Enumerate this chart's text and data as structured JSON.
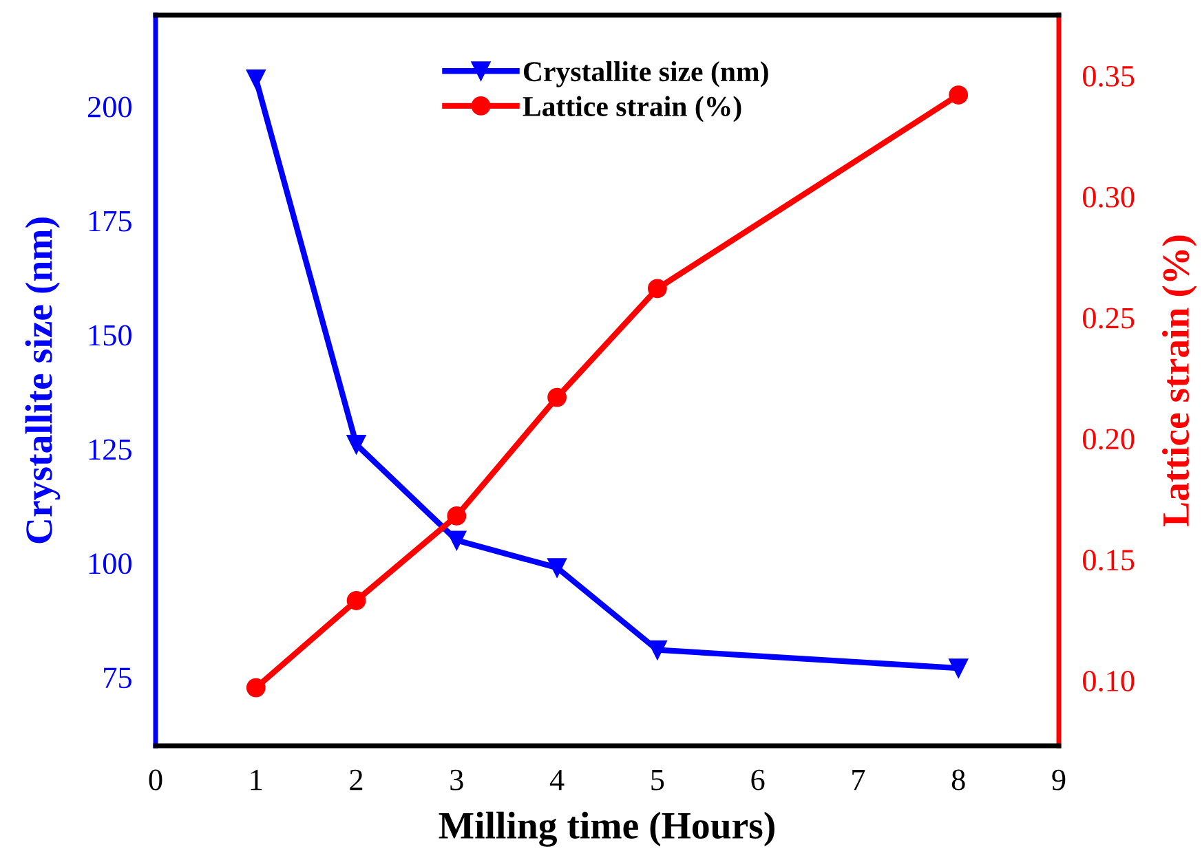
{
  "chart_data": {
    "type": "line",
    "xlabel": "Milling time (Hours)",
    "ylabel": "Crystallite size (nm)",
    "y2label": "Lattice strain (%)",
    "x": [
      1,
      2,
      3,
      4,
      5,
      8
    ],
    "series": [
      {
        "name": "Crystallite size (nm)",
        "color": "#0000ff",
        "marker": "triangle",
        "values": [
          206,
          126,
          105,
          99,
          81,
          77
        ]
      },
      {
        "name": "Lattice strain (%)",
        "color": "#ff0000",
        "marker": "circle",
        "axis": "y2",
        "values": [
          0.097,
          0.133,
          0.168,
          0.217,
          0.262,
          0.342
        ]
      }
    ],
    "xlim": [
      0,
      9
    ],
    "xticks": [
      0,
      1,
      2,
      3,
      4,
      5,
      6,
      7,
      8,
      9
    ],
    "ylim": [
      60,
      220
    ],
    "yticks": [
      75,
      100,
      125,
      150,
      175,
      200
    ],
    "y2lim": [
      0.073,
      0.375
    ],
    "y2ticks": [
      {
        "value": 0.1,
        "label": "0.10"
      },
      {
        "value": 0.15,
        "label": "0.15"
      },
      {
        "value": 0.2,
        "label": "0.20"
      },
      {
        "value": 0.25,
        "label": "0.25"
      },
      {
        "value": 0.3,
        "label": "0.30"
      },
      {
        "value": 0.35,
        "label": "0.35"
      }
    ],
    "legend": "top",
    "grid": false,
    "line_style": "solid"
  }
}
